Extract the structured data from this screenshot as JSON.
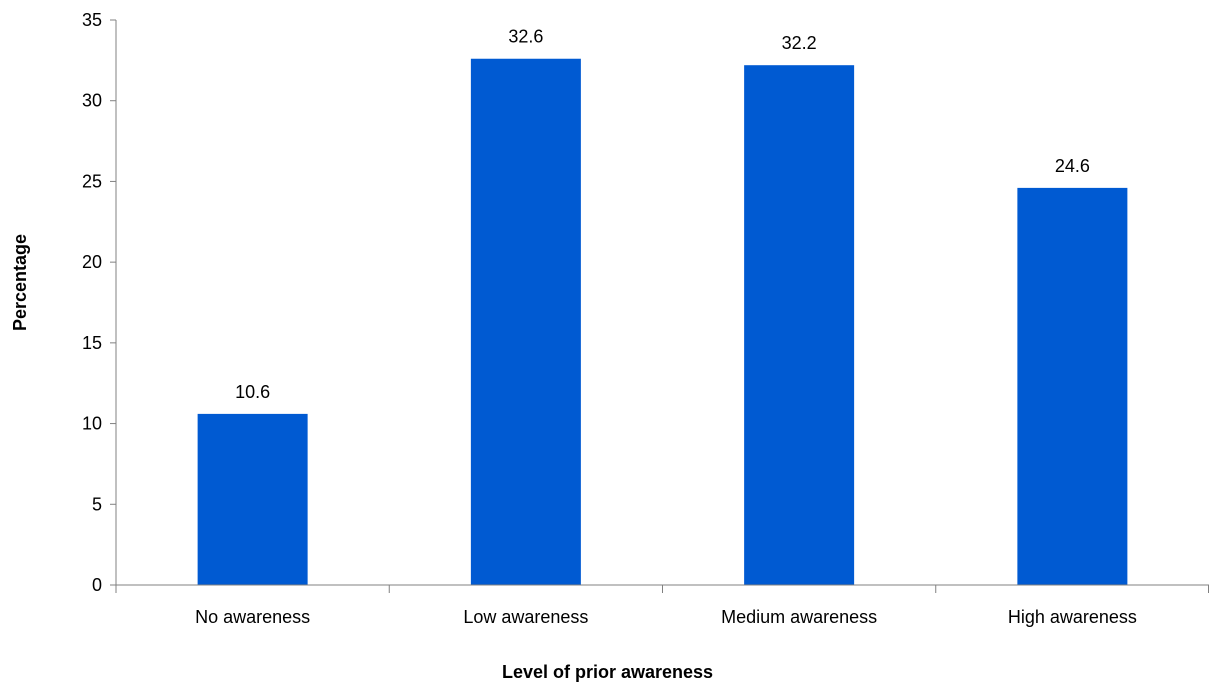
{
  "chart_data": {
    "type": "bar",
    "categories": [
      "No awareness",
      "Low awareness",
      "Medium awareness",
      "High awareness"
    ],
    "values": [
      10.6,
      32.6,
      32.2,
      24.6
    ],
    "value_labels": [
      "10.6",
      "32.6",
      "32.2",
      "24.6"
    ],
    "title": "",
    "xlabel": "Level of prior awareness",
    "ylabel": "Percentage",
    "ylim": [
      0,
      35
    ],
    "yticks": [
      0,
      5,
      10,
      15,
      20,
      25,
      30,
      35
    ],
    "ytick_labels": [
      "0",
      "5",
      "10",
      "15",
      "20",
      "25",
      "30",
      "35"
    ],
    "grid": false,
    "legend": "none",
    "bar_color": "#005AD2"
  }
}
